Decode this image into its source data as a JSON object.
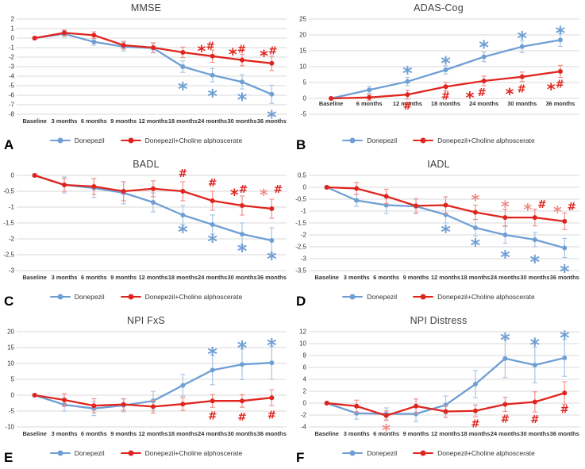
{
  "legend": {
    "donepezil": "Donepezil",
    "combo": "Donepezil+Choline alphoscerate"
  },
  "colors": {
    "blue": "#6f9fd4",
    "blue_marker": "#4f81bd",
    "blue_err": "#a9c6e4",
    "red": "#e0251f",
    "red_err": "#ef928d",
    "pink": "#ef8b86",
    "grid": "#d9d9d9",
    "tick_text": "#333333",
    "title_text": "#404040"
  },
  "chart_data": [
    {
      "type": "line",
      "panel": "A",
      "title": "MMSE",
      "categories": [
        "Baseline",
        "3 months",
        "6 months",
        "9 months",
        "12 months",
        "18 months",
        "24 months",
        "30 months",
        "36 months"
      ],
      "ylim": [
        -8,
        2
      ],
      "yticks": [
        2,
        1,
        0,
        -1,
        -2,
        -3,
        -4,
        -5,
        -6,
        -7,
        -8
      ],
      "ytick_labels": [
        "2",
        "1",
        "0",
        "-1",
        "-2",
        "-3",
        "-4",
        "-5",
        "-6",
        "-7",
        "-8"
      ],
      "xlabel_row_value": null,
      "series": [
        {
          "name": "Donepezil",
          "color": "blue",
          "values": [
            0,
            0.45,
            -0.4,
            -0.9,
            -1.05,
            -3.0,
            -3.9,
            -4.6,
            -5.9
          ],
          "errors": [
            0.12,
            0.3,
            0.35,
            0.45,
            0.5,
            0.6,
            0.7,
            0.75,
            0.95
          ]
        },
        {
          "name": "Donepezil+Choline alphoscerate",
          "color": "red",
          "values": [
            0,
            0.55,
            0.3,
            -0.75,
            -1.0,
            -1.5,
            -1.9,
            -2.3,
            -2.65
          ],
          "errors": [
            0.12,
            0.3,
            0.35,
            0.4,
            0.5,
            0.55,
            0.65,
            0.6,
            0.75
          ]
        }
      ],
      "annotations": [
        {
          "i": 5,
          "v": -4.75,
          "t": "*",
          "c": "blue",
          "s": 15
        },
        {
          "i": 6,
          "v": -5.5,
          "t": "*",
          "c": "blue",
          "s": 15
        },
        {
          "i": 7,
          "v": -5.9,
          "t": "*",
          "c": "blue",
          "s": 15
        },
        {
          "i": 8,
          "v": -7.7,
          "t": "*",
          "c": "blue",
          "s": 15
        },
        {
          "i": 6,
          "v": -0.85,
          "t": "*#",
          "c": "red",
          "s": 13,
          "dx": -8
        },
        {
          "i": 7,
          "v": -1.2,
          "t": "*#",
          "c": "red",
          "s": 13,
          "dx": -6
        },
        {
          "i": 8,
          "v": -1.35,
          "t": "*#",
          "c": "red",
          "s": 13,
          "dx": -4
        }
      ]
    },
    {
      "type": "line",
      "panel": "B",
      "title": "ADAS-Cog",
      "categories": [
        "Baseline",
        "6 months",
        "12 months",
        "18 months",
        "24 months",
        "30 months",
        "36 months"
      ],
      "ylim": [
        -5,
        25
      ],
      "yticks": [
        25,
        20,
        15,
        10,
        5,
        0,
        -5
      ],
      "ytick_labels": [
        "25",
        "20",
        "15",
        "10",
        "5",
        "0",
        "-5"
      ],
      "xlabel_row_value": -2.3,
      "series": [
        {
          "name": "Donepezil",
          "color": "blue",
          "values": [
            0,
            2.7,
            5.3,
            9.0,
            13.1,
            16.3,
            18.4
          ],
          "errors": [
            0.2,
            1.1,
            1.3,
            1.3,
            1.5,
            1.9,
            2.0
          ]
        },
        {
          "name": "Donepezil+Choline alphoscerate",
          "color": "red",
          "values": [
            0,
            0.3,
            1.2,
            3.7,
            5.5,
            6.8,
            8.5
          ],
          "errors": [
            0.2,
            0.9,
            1.4,
            1.4,
            1.5,
            1.5,
            1.9
          ]
        }
      ],
      "annotations": [
        {
          "i": 2,
          "v": 9.7,
          "t": "*",
          "c": "blue",
          "s": 15
        },
        {
          "i": 3,
          "v": 12.8,
          "t": "*",
          "c": "blue",
          "s": 15
        },
        {
          "i": 4,
          "v": 17.9,
          "t": "*",
          "c": "blue",
          "s": 15
        },
        {
          "i": 5,
          "v": 20.7,
          "t": "*",
          "c": "blue",
          "s": 15
        },
        {
          "i": 6,
          "v": 22.4,
          "t": "*",
          "c": "blue",
          "s": 15
        },
        {
          "i": 2,
          "v": -2.5,
          "t": "#",
          "c": "red",
          "s": 13
        },
        {
          "i": 3,
          "v": 0.6,
          "t": "#",
          "c": "red",
          "s": 13
        },
        {
          "i": 4,
          "v": 1.8,
          "t": "* #",
          "c": "red",
          "s": 13,
          "dx": -10
        },
        {
          "i": 5,
          "v": 2.9,
          "t": "* #",
          "c": "red",
          "s": 13,
          "dx": -8
        },
        {
          "i": 6,
          "v": 4.4,
          "t": "*#",
          "c": "red",
          "s": 13,
          "dx": -6
        }
      ]
    },
    {
      "type": "line",
      "panel": "C",
      "title": "BADL",
      "categories": [
        "Baseline",
        "3 months",
        "6 months",
        "9 months",
        "12 months",
        "18 months",
        "24 months",
        "30 months",
        "36 months"
      ],
      "ylim": [
        -3,
        0
      ],
      "yticks": [
        0,
        -0.5,
        -1,
        -1.5,
        -2,
        -2.5,
        -3
      ],
      "ytick_labels": [
        "0",
        "-0,5",
        "-1",
        "-1,5",
        "-2",
        "-2,5",
        "-3"
      ],
      "xlabel_row_value": null,
      "series": [
        {
          "name": "Donepezil",
          "color": "blue",
          "values": [
            0,
            -0.3,
            -0.4,
            -0.55,
            -0.85,
            -1.25,
            -1.55,
            -1.85,
            -2.05
          ],
          "errors": [
            0.04,
            0.25,
            0.3,
            0.35,
            0.3,
            0.3,
            0.3,
            0.35,
            0.4
          ]
        },
        {
          "name": "Donepezil+Choline alphoscerate",
          "color": "red",
          "values": [
            0,
            -0.3,
            -0.35,
            -0.5,
            -0.42,
            -0.5,
            -0.8,
            -0.95,
            -1.05
          ],
          "errors": [
            0.04,
            0.2,
            0.25,
            0.3,
            0.25,
            0.3,
            0.3,
            0.3,
            0.3
          ]
        }
      ],
      "annotations": [
        {
          "i": 5,
          "v": -1.6,
          "t": "*",
          "c": "blue",
          "s": 15
        },
        {
          "i": 6,
          "v": -1.9,
          "t": "*",
          "c": "blue",
          "s": 15
        },
        {
          "i": 7,
          "v": -2.2,
          "t": "*",
          "c": "blue",
          "s": 15
        },
        {
          "i": 8,
          "v": -2.45,
          "t": "*",
          "c": "blue",
          "s": 15
        },
        {
          "i": 5,
          "v": 0.05,
          "t": "#",
          "c": "red",
          "s": 13
        },
        {
          "i": 6,
          "v": -0.25,
          "t": "#",
          "c": "red",
          "s": 13
        },
        {
          "i": 7,
          "v": -0.45,
          "t": "*#",
          "c": "red",
          "s": 13,
          "dx": -4
        },
        {
          "i": 8,
          "v": -0.45,
          "t": "*",
          "c": "pink",
          "s": 13,
          "dx": -10
        },
        {
          "i": 8,
          "v": -0.45,
          "t": "#",
          "c": "red",
          "s": 13,
          "dx": 8
        }
      ]
    },
    {
      "type": "line",
      "panel": "D",
      "title": "IADL",
      "categories": [
        "Baseline",
        "3 months",
        "6 months",
        "9 months",
        "12 months",
        "18 months",
        "24 months",
        "30 months",
        "36 months"
      ],
      "ylim": [
        -3.5,
        0.5
      ],
      "yticks": [
        0.5,
        0,
        -0.5,
        -1,
        -1.5,
        -2,
        -2.5,
        -3,
        -3.5
      ],
      "ytick_labels": [
        "0,5",
        "0",
        "-0,5",
        "-1",
        "-1,5",
        "-2",
        "-2,5",
        "-3",
        "-3,5"
      ],
      "xlabel_row_value": null,
      "series": [
        {
          "name": "Donepezil",
          "color": "blue",
          "values": [
            0,
            -0.55,
            -0.75,
            -0.8,
            -1.15,
            -1.7,
            -2.0,
            -2.2,
            -2.55
          ],
          "errors": [
            0.05,
            0.25,
            0.35,
            0.3,
            0.35,
            0.35,
            0.35,
            0.3,
            0.4
          ]
        },
        {
          "name": "Donepezil+Choline alphoscerate",
          "color": "red",
          "values": [
            0,
            -0.05,
            -0.38,
            -0.78,
            -0.75,
            -1.05,
            -1.27,
            -1.27,
            -1.43
          ],
          "errors": [
            0.05,
            0.25,
            0.3,
            0.3,
            0.35,
            0.3,
            0.35,
            0.35,
            0.35
          ]
        }
      ],
      "annotations": [
        {
          "i": 4,
          "v": -1.63,
          "t": "*",
          "c": "blue",
          "s": 15
        },
        {
          "i": 5,
          "v": -2.2,
          "t": "*",
          "c": "blue",
          "s": 15
        },
        {
          "i": 6,
          "v": -2.7,
          "t": "*",
          "c": "blue",
          "s": 15
        },
        {
          "i": 7,
          "v": -2.9,
          "t": "*",
          "c": "blue",
          "s": 15
        },
        {
          "i": 8,
          "v": -3.3,
          "t": "*",
          "c": "blue",
          "s": 15
        },
        {
          "i": 5,
          "v": -0.33,
          "t": "*",
          "c": "pink",
          "s": 13
        },
        {
          "i": 6,
          "v": -0.6,
          "t": "*",
          "c": "pink",
          "s": 13
        },
        {
          "i": 7,
          "v": -0.73,
          "t": "*",
          "c": "pink",
          "s": 13,
          "dx": -9
        },
        {
          "i": 7,
          "v": -0.73,
          "t": "#",
          "c": "red",
          "s": 13,
          "dx": 9
        },
        {
          "i": 8,
          "v": -0.83,
          "t": "*",
          "c": "pink",
          "s": 13,
          "dx": -9
        },
        {
          "i": 8,
          "v": -0.83,
          "t": "#",
          "c": "red",
          "s": 13,
          "dx": 9
        }
      ]
    },
    {
      "type": "line",
      "panel": "E",
      "title": "NPI FxS",
      "categories": [
        "Baseline",
        "3 months",
        "6 months",
        "9 months",
        "12 months",
        "18 months",
        "24 months",
        "30 months",
        "36 months"
      ],
      "ylim": [
        -10,
        20
      ],
      "yticks": [
        20,
        15,
        10,
        5,
        0,
        -5,
        -10
      ],
      "ytick_labels": [
        "20",
        "15",
        "10",
        "5",
        "0",
        "-5",
        "-10"
      ],
      "xlabel_row_value": null,
      "series": [
        {
          "name": "Donepezil",
          "color": "blue",
          "values": [
            0,
            -3.0,
            -4.2,
            -3.2,
            -1.8,
            3.1,
            7.9,
            9.7,
            10.2
          ],
          "errors": [
            0.3,
            2.0,
            2.2,
            2.0,
            3.0,
            3.4,
            4.6,
            4.8,
            5.2
          ]
        },
        {
          "name": "Donepezil+Choline alphoscerate",
          "color": "red",
          "values": [
            0,
            -1.5,
            -3.3,
            -2.9,
            -3.6,
            -2.8,
            -1.8,
            -1.8,
            -0.8
          ],
          "errors": [
            0.3,
            2.0,
            2.2,
            1.8,
            2.0,
            2.0,
            2.0,
            2.0,
            2.5
          ]
        }
      ],
      "annotations": [
        {
          "i": 6,
          "v": 14.7,
          "t": "*",
          "c": "blue",
          "s": 15
        },
        {
          "i": 7,
          "v": 16.7,
          "t": "*",
          "c": "blue",
          "s": 15
        },
        {
          "i": 8,
          "v": 17.5,
          "t": "*",
          "c": "blue",
          "s": 15
        },
        {
          "i": 6,
          "v": -6.6,
          "t": "#",
          "c": "red",
          "s": 13
        },
        {
          "i": 7,
          "v": -7.0,
          "t": "#",
          "c": "red",
          "s": 13
        },
        {
          "i": 8,
          "v": -6.3,
          "t": "#",
          "c": "red",
          "s": 13
        }
      ]
    },
    {
      "type": "line",
      "panel": "F",
      "title": "NPI Distress",
      "categories": [
        "Baseline",
        "3 months",
        "6 months",
        "9 months",
        "12 months",
        "18 months",
        "24 months",
        "30 months",
        "36 months"
      ],
      "ylim": [
        -4,
        12
      ],
      "yticks": [
        12,
        10,
        8,
        6,
        4,
        2,
        0,
        -2,
        -4
      ],
      "ytick_labels": [
        "12",
        "10",
        "8",
        "6",
        "4",
        "2",
        "0",
        "-2",
        "-4"
      ],
      "xlabel_row_value": null,
      "series": [
        {
          "name": "Donepezil",
          "color": "blue",
          "values": [
            0,
            -1.7,
            -1.8,
            -1.8,
            -0.3,
            3.2,
            7.5,
            6.4,
            7.6
          ],
          "errors": [
            0.15,
            1.0,
            1.0,
            1.3,
            1.5,
            2.3,
            3.2,
            3.0,
            3.1
          ]
        },
        {
          "name": "Donepezil+Choline alphoscerate",
          "color": "red",
          "values": [
            0,
            -0.5,
            -2.1,
            -0.5,
            -1.4,
            -1.3,
            -0.2,
            0.2,
            1.7
          ],
          "errors": [
            0.15,
            1.0,
            0.8,
            1.2,
            1.0,
            1.0,
            1.2,
            1.7,
            1.9
          ]
        }
      ],
      "annotations": [
        {
          "i": 6,
          "v": 11.6,
          "t": "*",
          "c": "blue",
          "s": 15
        },
        {
          "i": 7,
          "v": 10.7,
          "t": "*",
          "c": "blue",
          "s": 15
        },
        {
          "i": 8,
          "v": 11.9,
          "t": "*",
          "c": "blue",
          "s": 15
        },
        {
          "i": 2,
          "v": -3.7,
          "t": "*",
          "c": "pink",
          "s": 13
        },
        {
          "i": 5,
          "v": -3.5,
          "t": "#",
          "c": "red",
          "s": 13
        },
        {
          "i": 6,
          "v": -2.7,
          "t": "#",
          "c": "red",
          "s": 13
        },
        {
          "i": 7,
          "v": -2.8,
          "t": "#",
          "c": "red",
          "s": 13
        },
        {
          "i": 8,
          "v": -1.1,
          "t": "#",
          "c": "red",
          "s": 13
        }
      ]
    }
  ]
}
